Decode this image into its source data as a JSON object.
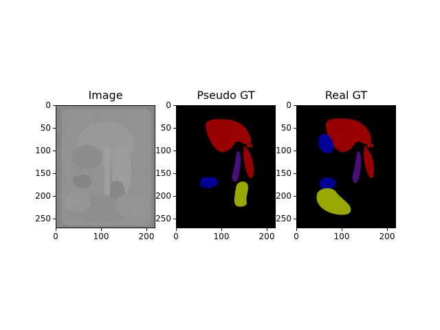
{
  "figure": {
    "panels": [
      {
        "title": "Image",
        "yticks": [
          "0",
          "50",
          "100",
          "150",
          "200",
          "250"
        ],
        "xticks": [
          "0",
          "100",
          "200"
        ]
      },
      {
        "title": "Pseudo GT",
        "yticks": [
          "0",
          "50",
          "100",
          "150",
          "200",
          "250"
        ],
        "xticks": [
          "0",
          "100",
          "200"
        ]
      },
      {
        "title": "Real GT",
        "yticks": [
          "0",
          "50",
          "100",
          "150",
          "200",
          "250"
        ],
        "xticks": [
          "0",
          "100",
          "200"
        ]
      }
    ],
    "colors": {
      "background": "#000000",
      "red_region": "#990000",
      "blue_region": "#000099",
      "purple_region": "#4b0f7a",
      "yellow_region": "#99a800",
      "scan_gray": "#9a9a9a"
    }
  }
}
